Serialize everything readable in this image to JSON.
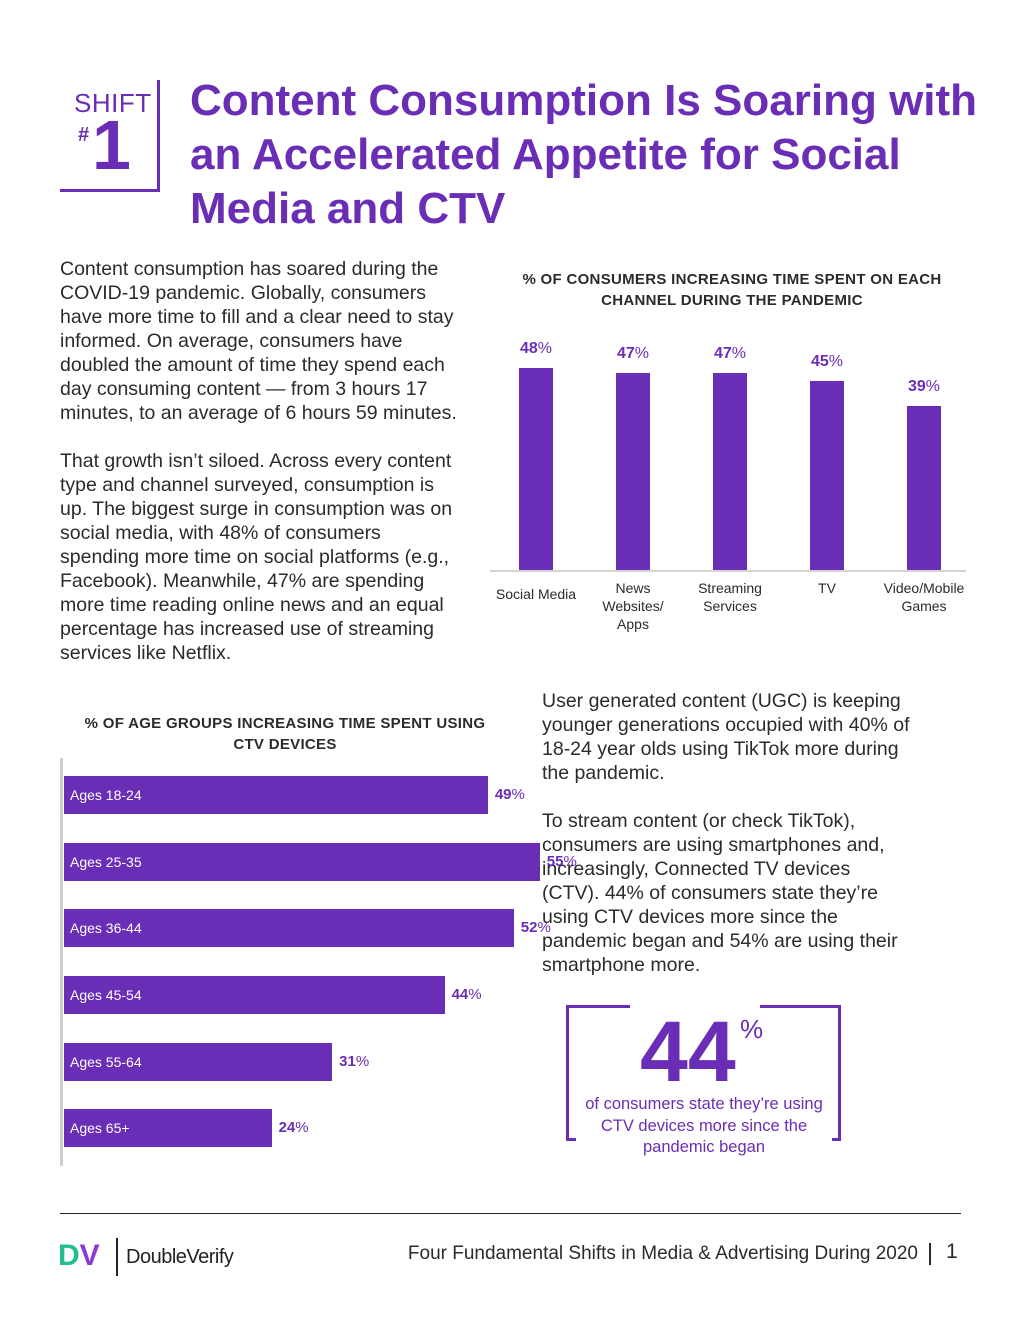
{
  "header": {
    "shift_label": "SHIFT",
    "shift_hash": "#",
    "shift_number": "1",
    "title": "Content Consumption Is Soaring with an Accelerated Appetite for Social Media and CTV"
  },
  "body": {
    "para1": "Content consumption has soared during the COVID-19 pandemic. Globally, consumers have more time to fill and a clear need to stay informed. On average, consumers have doubled the amount of time they spend each day consuming content — from 3 hours 17 minutes, to an average of 6 hours 59 minutes.",
    "para2": "That growth isn’t siloed. Across every content type and channel surveyed, consumption is up. The biggest surge in consumption was on social media, with 48% of consumers spending more time on social platforms (e.g., Facebook). Meanwhile, 47% are spending more time reading online news and an equal percentage has increased use of streaming services like Netflix.",
    "para3": "User generated content (UGC) is keeping younger generations occupied with 40% of 18-24 year olds using TikTok more during the pandemic.",
    "para4": "To stream content (or check TikTok), consumers are using smartphones and, increasingly, Connected TV devices (CTV). 44% of consumers state they’re using CTV devices more since the pandemic began and 54% are using their smartphone more."
  },
  "stat": {
    "number": "44",
    "percent": "%",
    "caption": "of consumers state they’re using CTV devices more since the pandemic began"
  },
  "footer": {
    "logo_name": "DoubleVerify",
    "logo_d": "D",
    "logo_v": "V",
    "text": "Four Fundamental Shifts in Media & Advertising During 2020",
    "page": "1"
  },
  "colors": {
    "accent": "#6a2db5",
    "logo_green": "#1fbf8f"
  },
  "chart_data": [
    {
      "type": "bar",
      "title": "% OF CONSUMERS INCREASING TIME SPENT ON EACH CHANNEL DURING THE PANDEMIC",
      "categories": [
        "Social Media",
        "News Websites/ Apps",
        "Streaming Services",
        "TV",
        "Video/Mobile Games"
      ],
      "category_lines": [
        [
          "Social Media"
        ],
        [
          "News",
          "Websites/",
          "Apps"
        ],
        [
          "Streaming",
          "Services"
        ],
        [
          "TV"
        ],
        [
          "Video/Mobile",
          "Games"
        ]
      ],
      "values": [
        48,
        47,
        47,
        45,
        39
      ],
      "unit": "%",
      "xlabel": "",
      "ylabel": "",
      "ylim": [
        0,
        50
      ]
    },
    {
      "type": "bar",
      "orientation": "horizontal",
      "title": "% OF AGE GROUPS INCREASING TIME SPENT USING CTV DEVICES",
      "categories": [
        "Ages 18-24",
        "Ages 25-35",
        "Ages 36-44",
        "Ages 45-54",
        "Ages 55-64",
        "Ages 65+"
      ],
      "values": [
        49,
        55,
        52,
        44,
        31,
        24
      ],
      "unit": "%",
      "xlabel": "",
      "ylabel": "",
      "xlim": [
        0,
        55
      ]
    }
  ]
}
